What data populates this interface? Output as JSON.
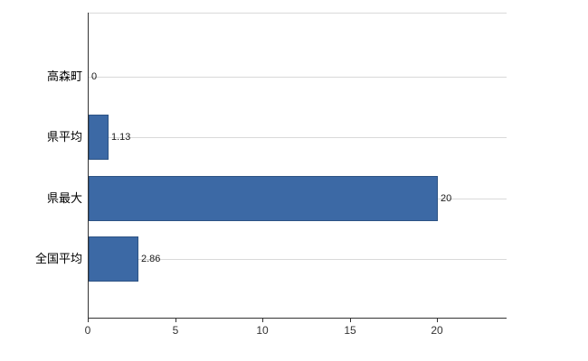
{
  "chart_data": {
    "type": "bar",
    "orientation": "horizontal",
    "categories": [
      "高森町",
      "県平均",
      "県最大",
      "全国平均"
    ],
    "values": [
      0,
      1.13,
      20,
      2.86
    ],
    "value_labels": [
      "0",
      "1.13",
      "20",
      "2.86"
    ],
    "x_ticks": [
      0,
      5,
      10,
      15,
      20
    ],
    "xlim": [
      0,
      24
    ],
    "grid": "category-lines",
    "legend_position": "none",
    "colors": {
      "bar_fill": "#3c69a5",
      "bar_border": "#2d5384",
      "axis": "#333333",
      "gridline": "#d9d9d9",
      "category_text": "#000000",
      "value_text": "#1a1a1a",
      "tick_text": "#333333",
      "background": "#ffffff"
    }
  }
}
